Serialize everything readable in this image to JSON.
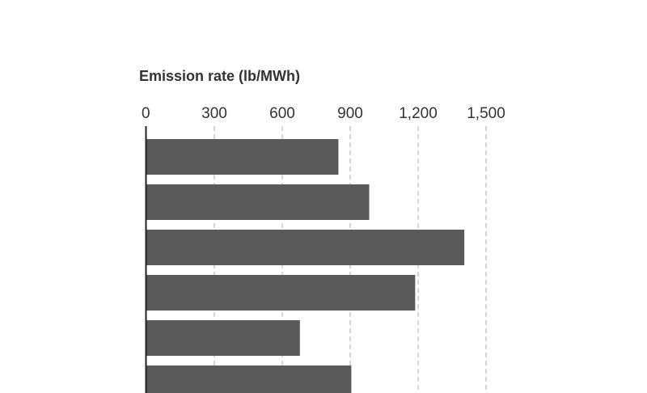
{
  "chart_data": {
    "type": "bar",
    "orientation": "horizontal",
    "title": "",
    "xlabel": "Emission rate (lb/MWh)",
    "ylabel": "",
    "xlim": [
      0,
      1500
    ],
    "ticks": [
      "0",
      "300",
      "600",
      "900",
      "1,200",
      "1,500"
    ],
    "tick_values": [
      0,
      300,
      600,
      900,
      1200,
      1500
    ],
    "values": [
      848,
      984,
      1404,
      1187,
      678,
      905
    ],
    "grid": true,
    "legend": "none",
    "colors": {
      "bar": "#5a5a5a",
      "grid": "#c8c8c8",
      "axis": "#222222",
      "text": "#333333"
    }
  }
}
